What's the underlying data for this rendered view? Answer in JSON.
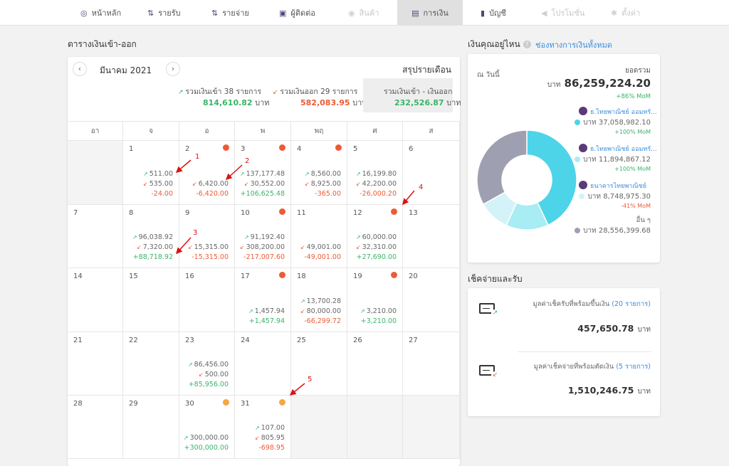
{
  "nav": [
    {
      "label": "หน้าหลัก",
      "icon": "dashboard-icon",
      "glyph": "◎",
      "state": "normal"
    },
    {
      "label": "รายรับ",
      "icon": "income-icon",
      "glyph": "⇅",
      "state": "normal"
    },
    {
      "label": "รายจ่าย",
      "icon": "expense-icon",
      "glyph": "⇅",
      "state": "normal"
    },
    {
      "label": "ผู้ติดต่อ",
      "icon": "contacts-icon",
      "glyph": "▣",
      "state": "normal"
    },
    {
      "label": "สินค้า",
      "icon": "products-icon",
      "glyph": "◉",
      "state": "disabled"
    },
    {
      "label": "การเงิน",
      "icon": "finance-icon",
      "glyph": "▤",
      "state": "active"
    },
    {
      "label": "บัญชี",
      "icon": "accounting-icon",
      "glyph": "▮",
      "state": "normal"
    },
    {
      "label": "โปรโมชั่น",
      "icon": "promotion-icon",
      "glyph": "◀",
      "state": "disabled"
    },
    {
      "label": "ตั้งค่า",
      "icon": "settings-icon",
      "glyph": "✱",
      "state": "disabled"
    }
  ],
  "calendar": {
    "title": "ตารางเงินเข้า-ออก",
    "month": "มีนาคม 2021",
    "summary_title": "สรุปรายเดือน",
    "income_label": "รวมเงินเข้า 38 รายการ",
    "income_value": "814,610.82",
    "expense_label": "รวมเงินออก 29 รายการ",
    "expense_value": "582,083.95",
    "net_label": "รวมเงินเข้า - เงินออก",
    "net_value": "232,526.87",
    "currency": "บาท",
    "weekdays": [
      "อา",
      "จ",
      "อ",
      "พ",
      "พฤ",
      "ศ",
      "ส"
    ],
    "weeks": [
      [
        {
          "blank": true
        },
        {
          "day": "1",
          "in": "511.00",
          "out": "535.00",
          "net": "-24.00"
        },
        {
          "day": "2",
          "dot": "red",
          "out": "6,420.00",
          "net": "-6,420.00"
        },
        {
          "day": "3",
          "dot": "red",
          "in": "137,177.48",
          "out": "30,552.00",
          "net": "+106,625.48"
        },
        {
          "day": "4",
          "dot": "red",
          "in": "8,560.00",
          "out": "8,925.00",
          "net": "-365.00"
        },
        {
          "day": "5",
          "in": "16,199.80",
          "out": "42,200.00",
          "net": "-26,000.20"
        },
        {
          "day": "6"
        }
      ],
      [
        {
          "day": "7"
        },
        {
          "day": "8",
          "in": "96,038.92",
          "out": "7,320.00",
          "net": "+88,718.92"
        },
        {
          "day": "9",
          "out": "15,315.00",
          "net": "-15,315.00"
        },
        {
          "day": "10",
          "dot": "red",
          "in": "91,192.40",
          "out": "308,200.00",
          "net": "-217,007.60"
        },
        {
          "day": "11",
          "out": "49,001.00",
          "net": "-49,001.00"
        },
        {
          "day": "12",
          "dot": "red",
          "in": "60,000.00",
          "out": "32,310.00",
          "net": "+27,690.00"
        },
        {
          "day": "13"
        }
      ],
      [
        {
          "day": "14"
        },
        {
          "day": "15"
        },
        {
          "day": "16"
        },
        {
          "day": "17",
          "dot": "red",
          "in": "1,457.94",
          "net": "+1,457.94"
        },
        {
          "day": "18",
          "in": "13,700.28",
          "out": "80,000.00",
          "net": "-66,299.72"
        },
        {
          "day": "19",
          "dot": "red",
          "in": "3,210.00",
          "net": "+3,210.00"
        },
        {
          "day": "20"
        }
      ],
      [
        {
          "day": "21"
        },
        {
          "day": "22"
        },
        {
          "day": "23",
          "in": "86,456.00",
          "out": "500.00",
          "net": "+85,956.00"
        },
        {
          "day": "24"
        },
        {
          "day": "25"
        },
        {
          "day": "26"
        },
        {
          "day": "27"
        }
      ],
      [
        {
          "day": "28"
        },
        {
          "day": "29"
        },
        {
          "day": "30",
          "dot": "orange",
          "in": "300,000.00",
          "net": "+300,000.00"
        },
        {
          "day": "31",
          "dot": "orange",
          "in": "107.00",
          "out": "805.95",
          "net": "-698.95"
        },
        {
          "blank": true
        },
        {
          "blank": true
        },
        {
          "blank": true
        }
      ]
    ],
    "annotations": [
      "1",
      "2",
      "3",
      "4",
      "5"
    ]
  },
  "where_money": {
    "title": "เงินคุณอยู่ไหน",
    "all_link": "ช่องทางการเงินทั้งหมด",
    "as_of": "ณ วันนี้",
    "total_label": "ยอดรวม",
    "currency": "บาท",
    "total_value": "86,259,224.20",
    "total_change": "+86% MoM",
    "accounts": [
      {
        "name": "ธ.ไทยพาณิชย์ ออมทรั...",
        "color": "#4dd4e8",
        "value": "37,058,982.10",
        "change": "+100% MoM",
        "change_color": "#3bb36a"
      },
      {
        "name": "ธ.ไทยพาณิชย์ ออมทรั...",
        "color": "#a8ecf4",
        "value": "11,894,867.12",
        "change": "+100% MoM",
        "change_color": "#3bb36a"
      },
      {
        "name": "ธนาคารไทยพาณิชย์",
        "color": "#d4f3f8",
        "value": "8,748,975.30",
        "change": "-41% MoM",
        "change_color": "#ee5a35"
      },
      {
        "name": "อื่น ๆ",
        "color": "#9ea0b2",
        "value": "28,556,399.68"
      }
    ],
    "chart_data": {
      "type": "pie",
      "categories": [
        "ธ.ไทยพาณิชย์ ออมทรั... (1)",
        "ธ.ไทยพาณิชย์ ออมทรั... (2)",
        "ธนาคารไทยพาณิชย์",
        "อื่น ๆ"
      ],
      "values": [
        37058982.1,
        11894867.12,
        8748975.3,
        28556399.68
      ],
      "colors": [
        "#4dd4e8",
        "#a8ecf4",
        "#d4f3f8",
        "#9ea0b2"
      ]
    }
  },
  "cheques": {
    "title": "เช็คจ่ายและรับ",
    "receive_label": "มูลค่าเช็ครับที่พร้อมขึ้นเงิน",
    "receive_count": "(20 รายการ)",
    "receive_value": "457,650.78",
    "pay_label": "มูลค่าเช็คจ่ายที่พร้อมตัดเงิน",
    "pay_count": "(5 รายการ)",
    "pay_value": "1,510,246.75",
    "currency": "บาท"
  }
}
